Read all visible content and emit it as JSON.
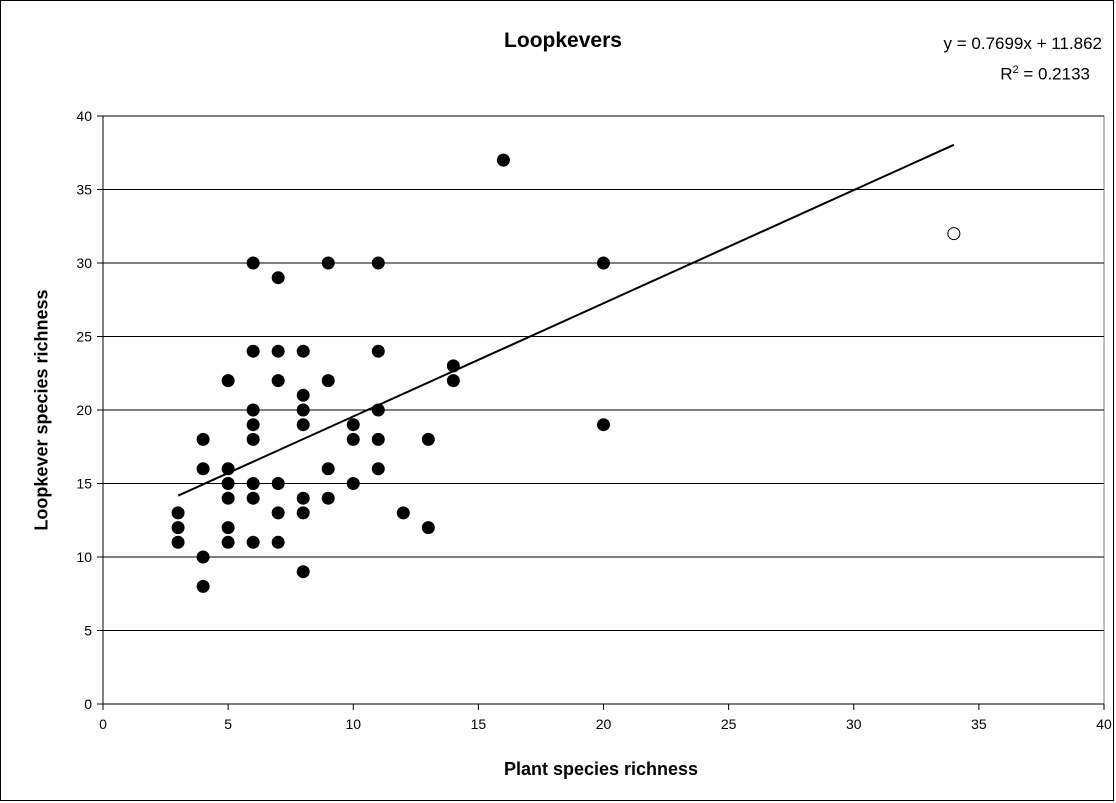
{
  "chart_data": {
    "type": "scatter",
    "title": "Loopkevers",
    "xlabel": "Plant species richness",
    "ylabel": "Loopkever species richness",
    "xlim": [
      0,
      40
    ],
    "ylim": [
      0,
      40
    ],
    "xticks": [
      0,
      5,
      10,
      15,
      20,
      25,
      30,
      35,
      40
    ],
    "yticks": [
      0,
      5,
      10,
      15,
      20,
      25,
      30,
      35,
      40
    ],
    "grid": "horizontal",
    "trendline": {
      "equation": "y = 0.7699x + 11.862",
      "r2_label": "R",
      "r2_exponent": "2",
      "r2_value": " = 0.2133",
      "slope": 0.7699,
      "intercept": 11.862,
      "x_range": [
        3,
        34
      ]
    },
    "series": [
      {
        "marker": "filled",
        "color": "#000000",
        "points": [
          [
            3,
            13
          ],
          [
            3,
            12
          ],
          [
            3,
            11
          ],
          [
            4,
            18
          ],
          [
            4,
            16
          ],
          [
            4,
            10
          ],
          [
            4,
            8
          ],
          [
            5,
            22
          ],
          [
            5,
            16
          ],
          [
            5,
            15
          ],
          [
            5,
            14
          ],
          [
            5,
            12
          ],
          [
            5,
            11
          ],
          [
            6,
            30
          ],
          [
            6,
            24
          ],
          [
            6,
            20
          ],
          [
            6,
            19
          ],
          [
            6,
            18
          ],
          [
            6,
            15
          ],
          [
            6,
            14
          ],
          [
            6,
            11
          ],
          [
            7,
            29
          ],
          [
            7,
            24
          ],
          [
            7,
            22
          ],
          [
            7,
            15
          ],
          [
            7,
            13
          ],
          [
            7,
            11
          ],
          [
            8,
            24
          ],
          [
            8,
            21
          ],
          [
            8,
            20
          ],
          [
            8,
            19
          ],
          [
            8,
            14
          ],
          [
            8,
            13
          ],
          [
            8,
            9
          ],
          [
            9,
            30
          ],
          [
            9,
            22
          ],
          [
            9,
            16
          ],
          [
            9,
            14
          ],
          [
            10,
            19
          ],
          [
            10,
            18
          ],
          [
            10,
            15
          ],
          [
            11,
            30
          ],
          [
            11,
            24
          ],
          [
            11,
            20
          ],
          [
            11,
            18
          ],
          [
            11,
            16
          ],
          [
            12,
            13
          ],
          [
            13,
            18
          ],
          [
            13,
            12
          ],
          [
            14,
            23
          ],
          [
            14,
            22
          ],
          [
            16,
            37
          ],
          [
            20,
            30
          ],
          [
            20,
            19
          ]
        ]
      },
      {
        "marker": "open",
        "color": "#000000",
        "points": [
          [
            34,
            32
          ]
        ]
      }
    ]
  }
}
